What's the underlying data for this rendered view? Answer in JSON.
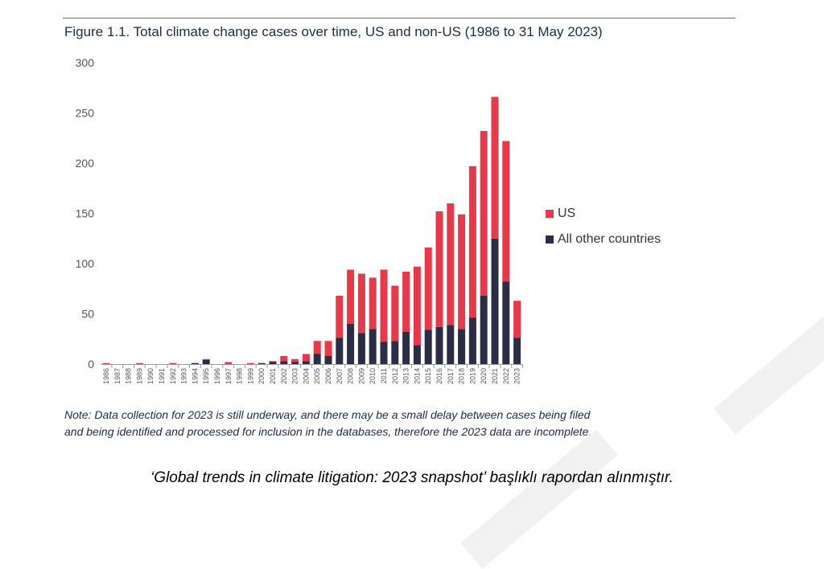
{
  "title": "Figure 1.1. Total climate change cases over time, US and non-US (1986 to 31 May 2023)",
  "note_line1": "Note: Data collection for 2023 is still underway, and there may be a small delay between cases being filed",
  "note_line2": "and being identified and processed for inclusion in the databases, therefore the 2023 data are incomplete.",
  "caption": "‘Global trends in climate litigation: 2023 snapshot’ başlıklı rapordan alınmıştır.",
  "colors": {
    "us": "#e8394a",
    "other": "#2a2d45",
    "axis": "#9a9a9a",
    "text": "#555555"
  },
  "chart_data": {
    "type": "bar",
    "stacked": true,
    "categories": [
      "1986",
      "1987",
      "1988",
      "1989",
      "1990",
      "1991",
      "1992",
      "1993",
      "1994",
      "1995",
      "1996",
      "1997",
      "1998",
      "1999",
      "2000",
      "2001",
      "2002",
      "2003",
      "2004",
      "2005",
      "2006",
      "2007",
      "2008",
      "2009",
      "2010",
      "2011",
      "2012",
      "2013",
      "2014",
      "2015",
      "2016",
      "2017",
      "2018",
      "2019",
      "2020",
      "2021",
      "2022",
      "2023"
    ],
    "series": [
      {
        "name": "All other countries",
        "values": [
          0,
          0,
          0,
          0,
          0,
          0,
          0,
          0,
          1,
          4,
          0,
          0,
          0,
          0,
          1,
          2,
          3,
          2,
          3,
          10,
          8,
          26,
          40,
          31,
          35,
          22,
          23,
          32,
          19,
          34,
          37,
          39,
          35,
          46,
          68,
          125,
          82,
          26
        ]
      },
      {
        "name": "US",
        "values": [
          1,
          0,
          0,
          1,
          0,
          0,
          1,
          0,
          0,
          1,
          0,
          2,
          0,
          1,
          0,
          1,
          5,
          3,
          7,
          13,
          15,
          42,
          54,
          59,
          51,
          72,
          55,
          60,
          78,
          82,
          115,
          121,
          114,
          151,
          164,
          141,
          140,
          37
        ]
      }
    ],
    "ylim": [
      0,
      300
    ],
    "yticks": [
      0,
      50,
      100,
      150,
      200,
      250,
      300
    ],
    "legend_position": "right",
    "grid": false
  }
}
